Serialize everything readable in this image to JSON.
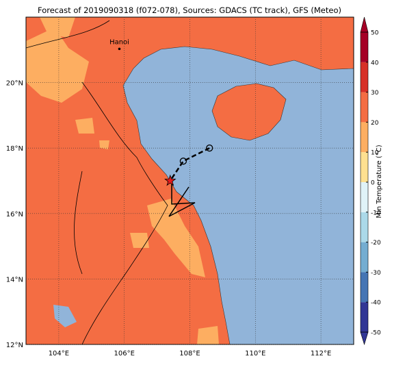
{
  "map": {
    "title": "Forecast of 2019090318 (f072-078), Sources: GDACS (TC track), GFS (Meteo)",
    "lonlim": [
      103,
      113
    ],
    "latlim": [
      12,
      22
    ],
    "lonticks": [
      {
        "value": 104,
        "label": "104°E"
      },
      {
        "value": 106,
        "label": "106°E"
      },
      {
        "value": 108,
        "label": "108°E"
      },
      {
        "value": 110,
        "label": "110°E"
      },
      {
        "value": 112,
        "label": "112°E"
      }
    ],
    "latticks": [
      {
        "value": 12,
        "label": "12°N"
      },
      {
        "value": 14,
        "label": "14°N"
      },
      {
        "value": 16,
        "label": "16°N"
      },
      {
        "value": 18,
        "label": "18°N"
      },
      {
        "value": 20,
        "label": "20°N"
      }
    ],
    "city": {
      "name": "Hanoi",
      "lon": 105.85,
      "lat": 21.03
    },
    "track": [
      {
        "lon": 108.6,
        "lat": 18.0
      },
      {
        "lon": 107.8,
        "lat": 17.6
      },
      {
        "lon": 107.4,
        "lat": 17.0
      }
    ],
    "colorbar": {
      "label": "Min Temperature (°C)",
      "lim": [
        -50,
        50
      ],
      "ticks": [
        -50,
        -40,
        -30,
        -20,
        -10,
        0,
        10,
        20,
        30,
        40,
        50
      ],
      "colors": [
        "#313695",
        "#4575b4",
        "#74add1",
        "#abd9e9",
        "#e0f3f8",
        "#ffffbf",
        "#fee090",
        "#fdae61",
        "#f46d43",
        "#d73027",
        "#a50026"
      ]
    }
  }
}
